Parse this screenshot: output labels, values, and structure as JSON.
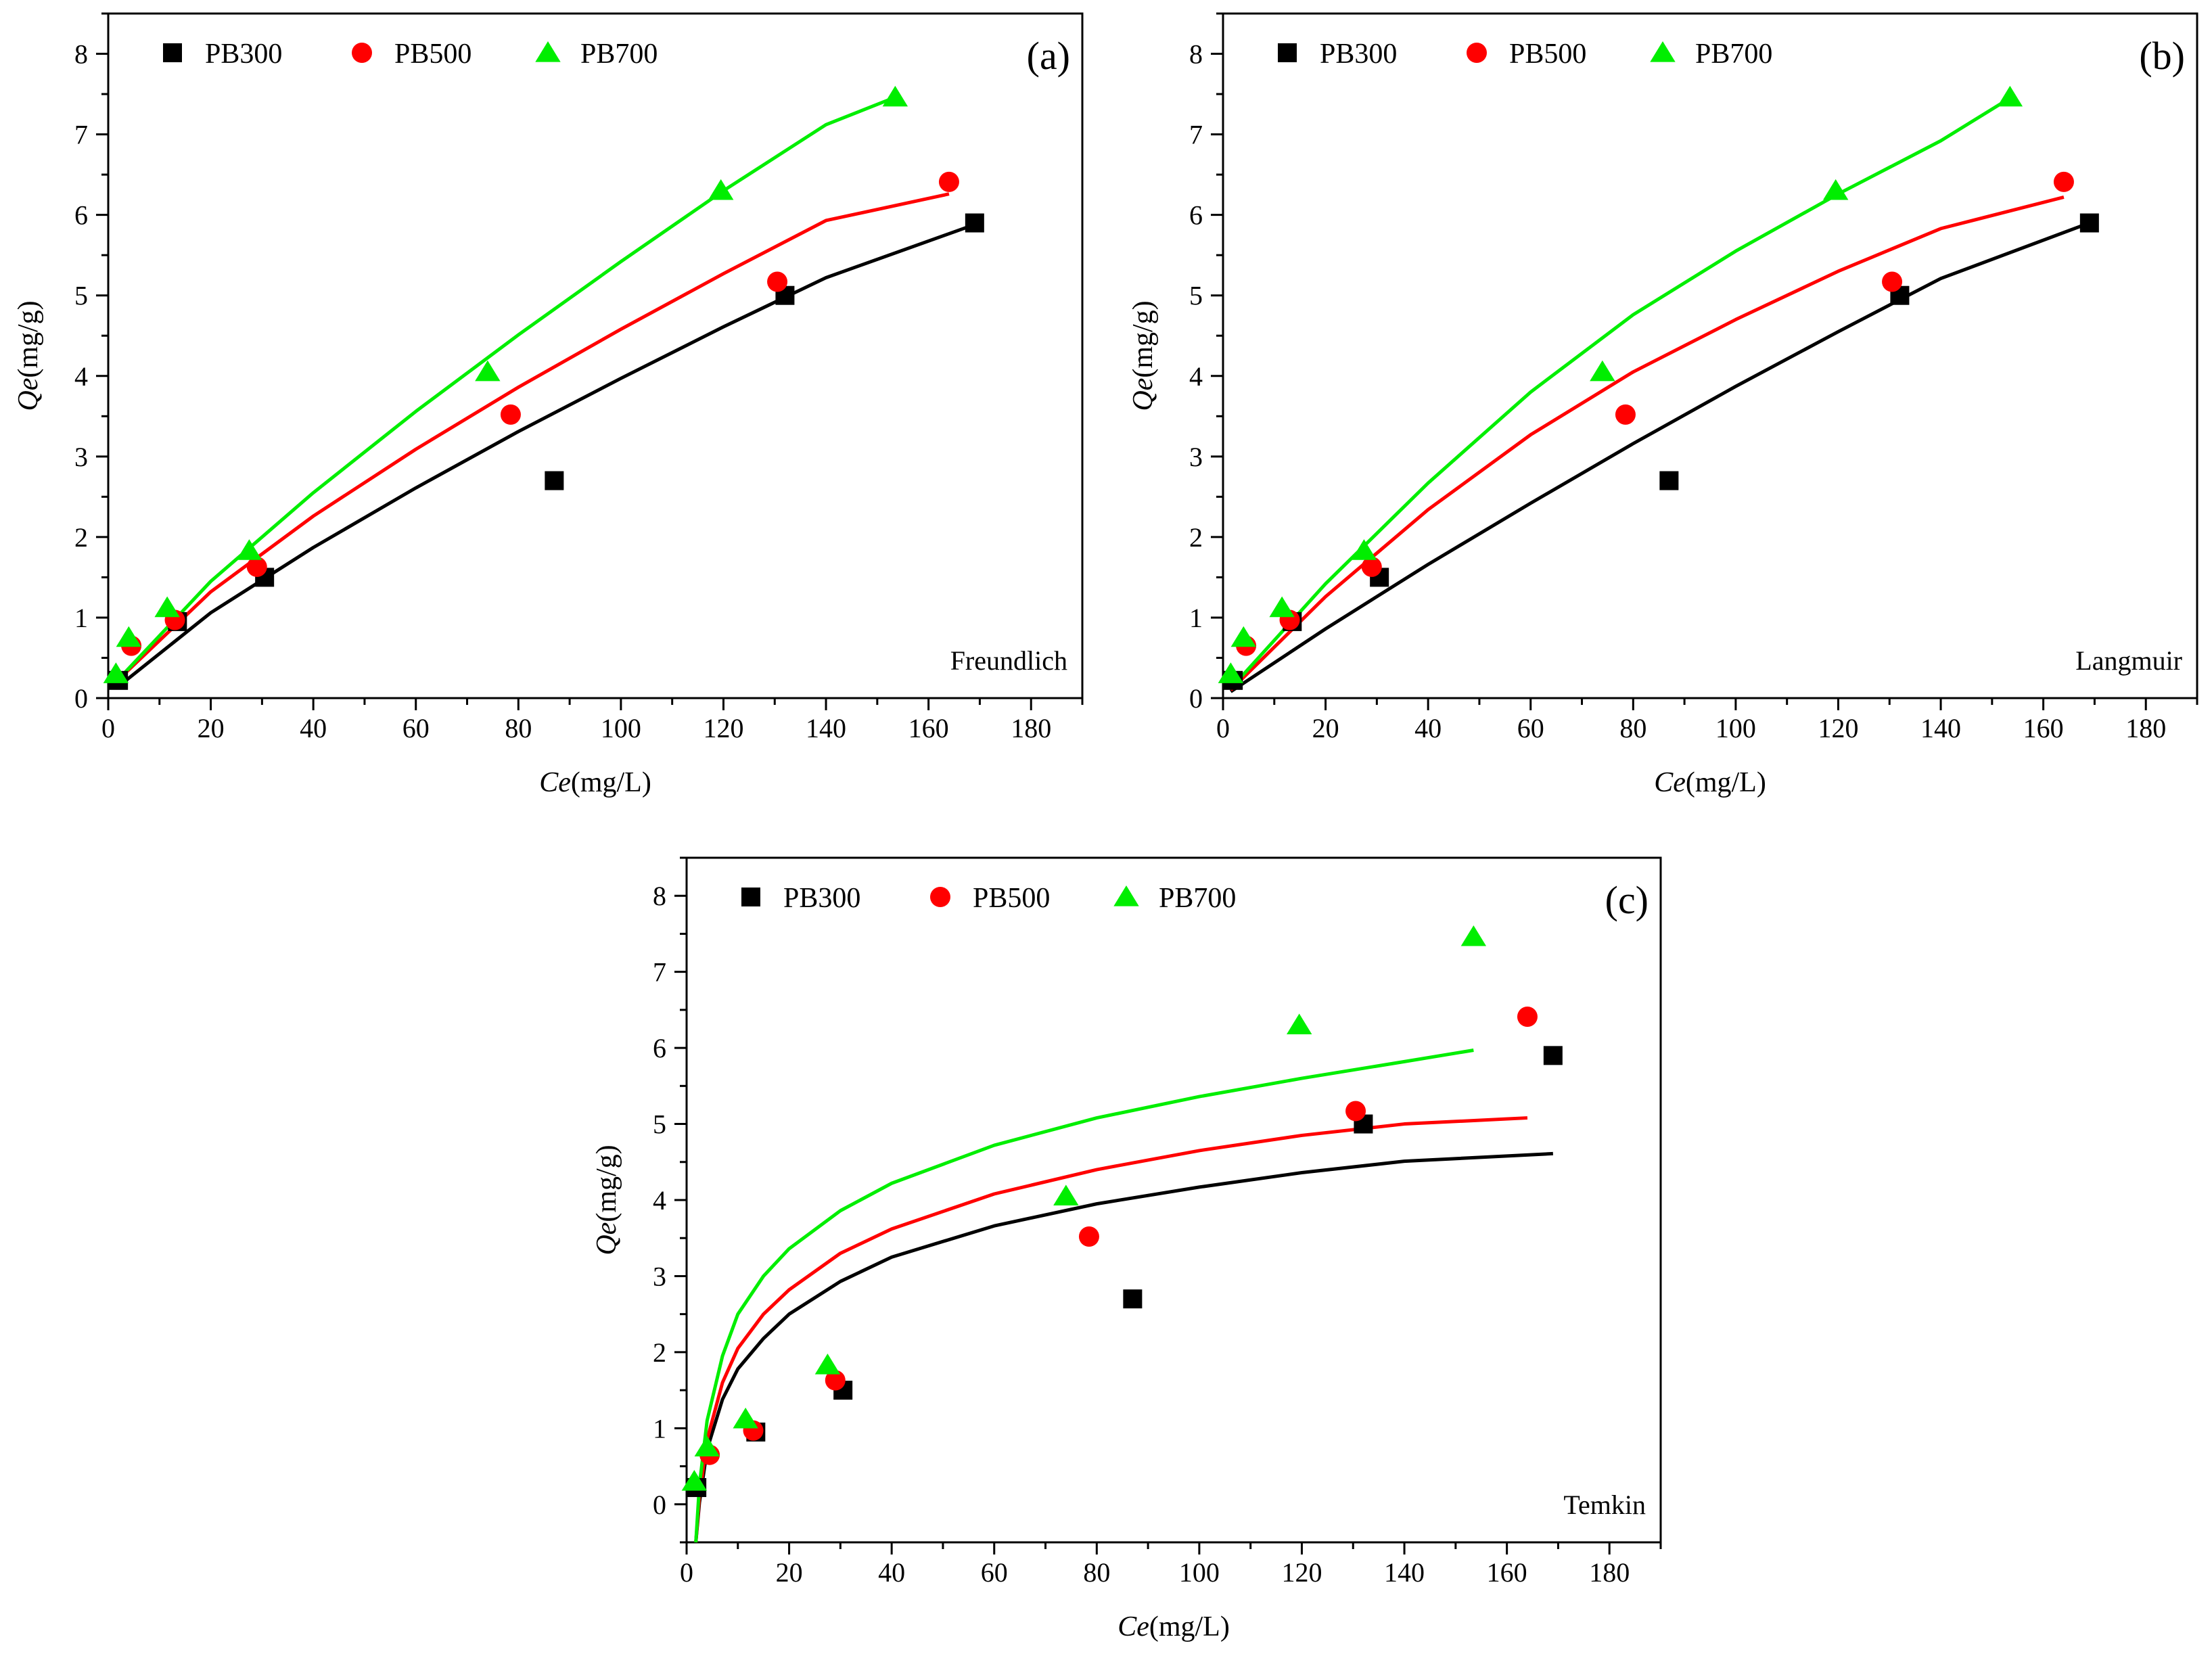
{
  "figure": {
    "colors": {
      "PB300": "#000000",
      "PB500": "#ff0000",
      "PB700": "#00ee00"
    }
  },
  "chart_data": [
    {
      "type": "scatter",
      "panel_label": "(a)",
      "model": "Freundlich",
      "xlabel_italic": "Ce",
      "xlabel_unit": "(mg/L)",
      "ylabel_italic": "Qe",
      "ylabel_unit": "(mg/g)",
      "xlim": [
        0,
        190
      ],
      "ylim": [
        0,
        8.5
      ],
      "xticks": [
        0,
        20,
        40,
        60,
        80,
        100,
        120,
        140,
        160,
        180
      ],
      "yticks": [
        0,
        1,
        2,
        3,
        4,
        5,
        6,
        7,
        8
      ],
      "legend": [
        "PB300",
        "PB500",
        "PB700"
      ],
      "series": [
        {
          "name": "PB300",
          "marker": "square",
          "x": [
            2,
            13.5,
            30.5,
            87,
            132,
            169
          ],
          "y": [
            0.22,
            0.95,
            1.5,
            2.7,
            5.0,
            5.9
          ],
          "fit": {
            "x": [
              1.5,
              20,
              40,
              60,
              80,
              100,
              120,
              140,
              169
            ],
            "y": [
              0.12,
              1.06,
              1.87,
              2.61,
              3.31,
              3.97,
              4.61,
              5.22,
              5.88
            ]
          }
        },
        {
          "name": "PB500",
          "marker": "circle",
          "x": [
            4.5,
            13,
            29,
            78.5,
            130.5,
            164
          ],
          "y": [
            0.65,
            0.97,
            1.63,
            3.52,
            5.17,
            6.41
          ],
          "fit": {
            "x": [
              1.5,
              20,
              40,
              60,
              80,
              100,
              120,
              140,
              164
            ],
            "y": [
              0.2,
              1.32,
              2.26,
              3.09,
              3.86,
              4.58,
              5.27,
              5.93,
              6.26
            ]
          }
        },
        {
          "name": "PB700",
          "marker": "triangle",
          "x": [
            1.5,
            4,
            11.5,
            27.5,
            74,
            119.5,
            153.5
          ],
          "y": [
            0.3,
            0.75,
            1.12,
            1.83,
            4.05,
            6.3,
            7.46
          ],
          "fit": {
            "x": [
              1.5,
              20,
              40,
              60,
              80,
              100,
              120,
              140,
              153.5
            ],
            "y": [
              0.2,
              1.45,
              2.55,
              3.56,
              4.51,
              5.42,
              6.3,
              7.12,
              7.46
            ]
          }
        }
      ]
    },
    {
      "type": "scatter",
      "panel_label": "(b)",
      "model": "Langmuir",
      "xlabel_italic": "Ce",
      "xlabel_unit": "(mg/L)",
      "ylabel_italic": "Qe",
      "ylabel_unit": "(mg/g)",
      "xlim": [
        0,
        190
      ],
      "ylim": [
        0,
        8.5
      ],
      "xticks": [
        0,
        20,
        40,
        60,
        80,
        100,
        120,
        140,
        160,
        180
      ],
      "yticks": [
        0,
        1,
        2,
        3,
        4,
        5,
        6,
        7,
        8
      ],
      "legend": [
        "PB300",
        "PB500",
        "PB700"
      ],
      "series": [
        {
          "name": "PB300",
          "marker": "square",
          "x": [
            2,
            13.5,
            30.5,
            87,
            132,
            169
          ],
          "y": [
            0.22,
            0.95,
            1.5,
            2.7,
            5.0,
            5.9
          ],
          "fit": {
            "x": [
              1.5,
              20,
              40,
              60,
              80,
              100,
              120,
              140,
              169
            ],
            "y": [
              0.08,
              0.86,
              1.66,
              2.42,
              3.16,
              3.87,
              4.55,
              5.21,
              5.9
            ]
          }
        },
        {
          "name": "PB500",
          "marker": "circle",
          "x": [
            4.5,
            13,
            29,
            78.5,
            130.5,
            164
          ],
          "y": [
            0.65,
            0.97,
            1.63,
            3.52,
            5.17,
            6.41
          ],
          "fit": {
            "x": [
              1.5,
              20,
              40,
              60,
              80,
              100,
              120,
              140,
              164
            ],
            "y": [
              0.1,
              1.26,
              2.34,
              3.27,
              4.05,
              4.7,
              5.3,
              5.83,
              6.22
            ]
          }
        },
        {
          "name": "PB700",
          "marker": "triangle",
          "x": [
            1.5,
            4,
            11.5,
            27.5,
            74,
            119.5,
            153.5
          ],
          "y": [
            0.3,
            0.75,
            1.12,
            1.83,
            4.05,
            6.3,
            7.46
          ],
          "fit": {
            "x": [
              1.5,
              20,
              40,
              60,
              80,
              100,
              120,
              140,
              153.5
            ],
            "y": [
              0.12,
              1.42,
              2.67,
              3.8,
              4.76,
              5.55,
              6.26,
              6.92,
              7.45
            ]
          }
        }
      ]
    },
    {
      "type": "scatter",
      "panel_label": "(c)",
      "model": "Temkin",
      "xlabel_italic": "Ce",
      "xlabel_unit": "(mg/L)",
      "ylabel_italic": "Qe",
      "ylabel_unit": "(mg/g)",
      "xlim": [
        0,
        190
      ],
      "ylim": [
        -0.5,
        8.5
      ],
      "xticks": [
        0,
        20,
        40,
        60,
        80,
        100,
        120,
        140,
        160,
        180
      ],
      "yticks": [
        0,
        1,
        2,
        3,
        4,
        5,
        6,
        7,
        8
      ],
      "legend": [
        "PB300",
        "PB500",
        "PB700"
      ],
      "series": [
        {
          "name": "PB300",
          "marker": "square",
          "x": [
            2,
            13.5,
            30.5,
            87,
            132,
            169
          ],
          "y": [
            0.22,
            0.95,
            1.5,
            2.7,
            5.0,
            5.9
          ],
          "fit": {
            "x": [
              1.8,
              2.5,
              4,
              7,
              10,
              15,
              20,
              30,
              40,
              60,
              80,
              100,
              120,
              140,
              169
            ],
            "y": [
              -0.5,
              0.02,
              0.72,
              1.38,
              1.78,
              2.18,
              2.5,
              2.93,
              3.25,
              3.66,
              3.95,
              4.17,
              4.36,
              4.51,
              4.61
            ]
          }
        },
        {
          "name": "PB500",
          "marker": "circle",
          "x": [
            4.5,
            13,
            29,
            78.5,
            130.5,
            164
          ],
          "y": [
            0.65,
            0.97,
            1.63,
            3.52,
            5.17,
            6.41
          ],
          "fit": {
            "x": [
              1.8,
              2.5,
              4,
              7,
              10,
              15,
              20,
              30,
              40,
              60,
              80,
              100,
              120,
              140,
              164
            ],
            "y": [
              -0.5,
              0.1,
              0.85,
              1.6,
              2.05,
              2.5,
              2.82,
              3.3,
              3.62,
              4.08,
              4.4,
              4.65,
              4.85,
              5.0,
              5.08
            ]
          }
        },
        {
          "name": "PB700",
          "marker": "triangle",
          "x": [
            1.5,
            4,
            11.5,
            27.5,
            74,
            119.5,
            153.5
          ],
          "y": [
            0.3,
            0.75,
            1.12,
            1.83,
            4.05,
            6.3,
            7.46
          ],
          "fit": {
            "x": [
              1.8,
              2.5,
              4,
              7,
              10,
              15,
              20,
              30,
              40,
              60,
              80,
              100,
              120,
              140,
              153.5
            ],
            "y": [
              -0.5,
              0.25,
              1.1,
              1.95,
              2.5,
              3.0,
              3.36,
              3.86,
              4.22,
              4.72,
              5.08,
              5.36,
              5.6,
              5.82,
              5.97
            ]
          }
        }
      ]
    }
  ]
}
